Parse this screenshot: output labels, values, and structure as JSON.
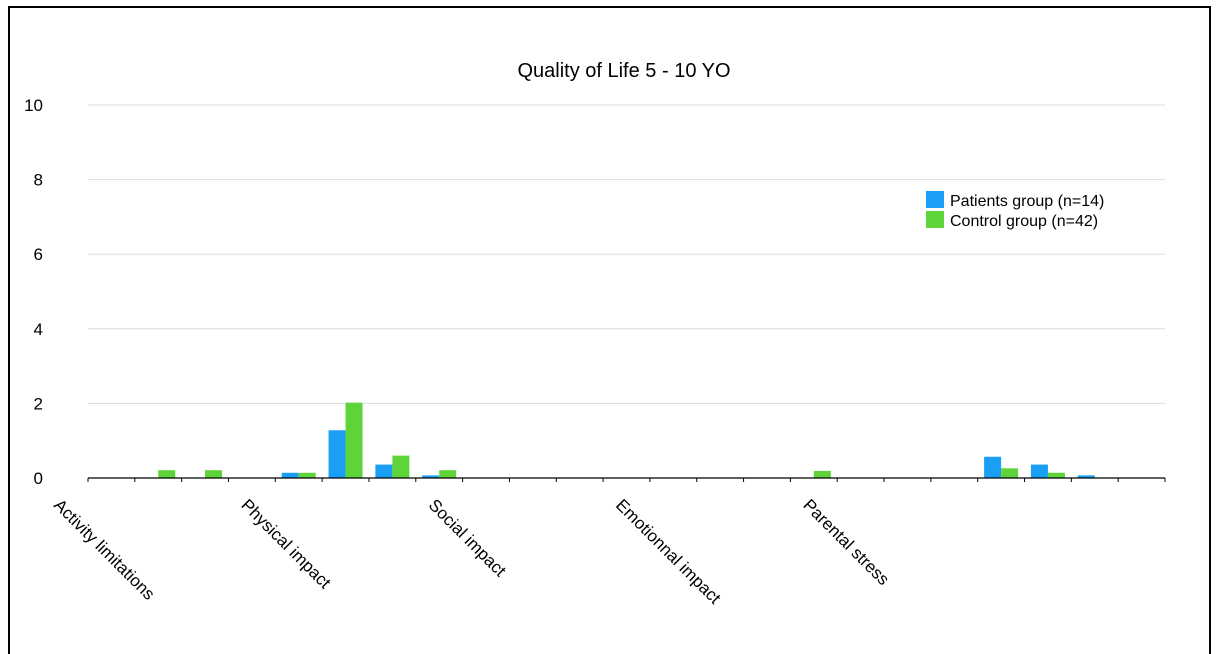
{
  "chart_data": {
    "type": "bar",
    "title": "Quality of Life 5 - 10 YO",
    "xlabel": "",
    "ylabel": "",
    "ylim": [
      0,
      10
    ],
    "yticks": [
      0,
      2,
      4,
      6,
      8,
      10
    ],
    "grid": true,
    "legend_position": "right",
    "category_labels": [
      "Activity limitations",
      "Physical impact",
      "Social impact",
      "Emotionnal impact",
      "Parental stress"
    ],
    "category_label_slots": [
      0,
      4,
      8,
      12,
      16
    ],
    "series": [
      {
        "name": "Patients group (n=14)",
        "color": "#1a9ff5",
        "values": [
          0,
          0,
          0,
          0,
          0.14,
          1.28,
          0.36,
          0.07,
          0,
          0,
          0,
          0,
          0,
          0,
          0,
          0,
          0,
          0,
          0,
          0.57,
          0.36,
          0.07,
          0
        ]
      },
      {
        "name": "Control group (n=42)",
        "color": "#5fd43a",
        "values": [
          0,
          0.21,
          0.21,
          0,
          0.14,
          2.02,
          0.6,
          0.21,
          0,
          0,
          0,
          0,
          0,
          0,
          0,
          0.19,
          0,
          0,
          0,
          0.26,
          0.14,
          0,
          0
        ]
      }
    ]
  }
}
